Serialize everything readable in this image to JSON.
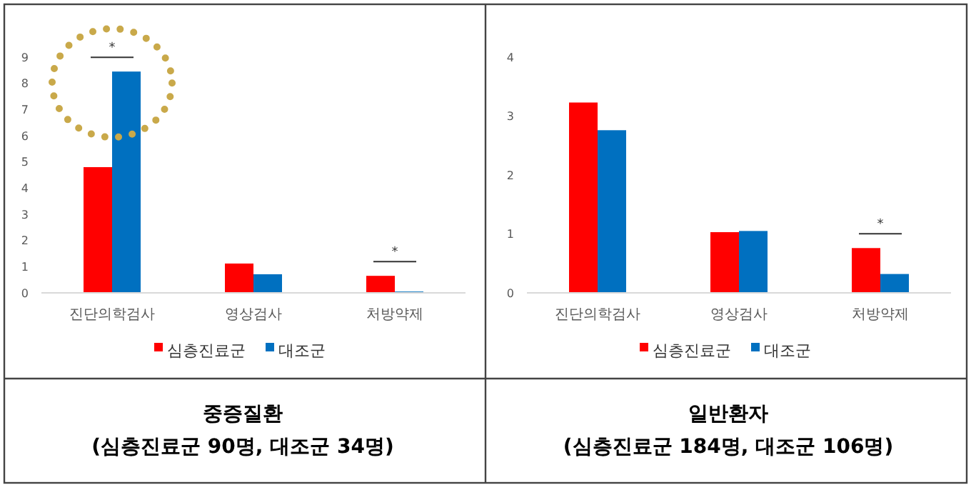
{
  "chart_data": [
    {
      "type": "bar",
      "title": "중증질환",
      "subtitle": "(심층진료군 90명, 대조군 34명)",
      "categories": [
        "진단의학검사",
        "영상검사",
        "처방약제"
      ],
      "series": [
        {
          "name": "심층진료군",
          "color": "#ff0000",
          "values": [
            4.8,
            1.12,
            0.65
          ]
        },
        {
          "name": "대조군",
          "color": "#0070c0",
          "values": [
            8.45,
            0.71,
            0.05
          ]
        }
      ],
      "ylim": [
        0,
        9
      ],
      "yticks": [
        0,
        1,
        2,
        3,
        4,
        5,
        6,
        7,
        8,
        9
      ],
      "grid": false,
      "legend": "bottom",
      "annotations": [
        "*",
        "*"
      ]
    },
    {
      "type": "bar",
      "title": "일반환자",
      "subtitle": "(심층진료군 184명, 대조군 106명)",
      "categories": [
        "진단의학검사",
        "영상검사",
        "처방약제"
      ],
      "series": [
        {
          "name": "심층진료군",
          "color": "#ff0000",
          "values": [
            3.23,
            1.03,
            0.76
          ]
        },
        {
          "name": "대조군",
          "color": "#0070c0",
          "values": [
            2.76,
            1.05,
            0.32
          ]
        }
      ],
      "ylim": [
        0,
        4
      ],
      "yticks": [
        0,
        1,
        2,
        3,
        4
      ],
      "grid": false,
      "legend": "bottom",
      "annotations": [
        "*"
      ]
    }
  ]
}
